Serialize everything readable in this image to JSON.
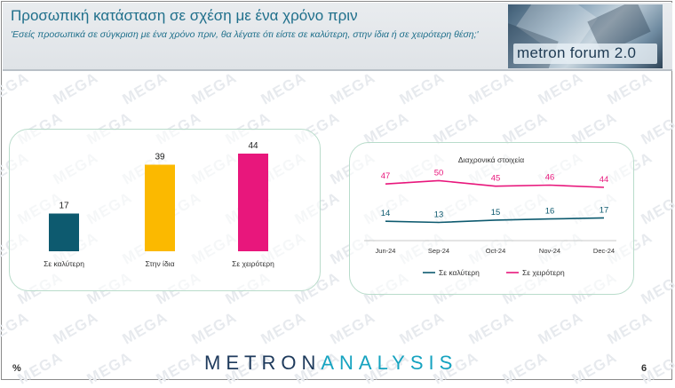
{
  "header": {
    "title": "Προσωπική κατάσταση σε σχέση με ένα χρόνο πριν",
    "subtitle": "'Εσείς προσωπικά σε σύγκριση με ένα χρόνο πριν, θα λέγατε ότι είστε σε καλύτερη, στην ίδια ή σε χειρότερη θέση;'"
  },
  "logo": {
    "text": "metron forum 2.0"
  },
  "watermark": {
    "text": "MEGA"
  },
  "footer": {
    "brand_part1": "METRON",
    "brand_part2": "ANALYSIS",
    "corner_left": "%",
    "page_number": "6"
  },
  "colors": {
    "better": "#0d5a6f",
    "same": "#fbb900",
    "worse": "#e8177c",
    "title": "#1f6f8b"
  },
  "chart_data": [
    {
      "type": "bar",
      "categories": [
        "Σε καλύτερη",
        "Στην ίδια",
        "Σε χειρότερη"
      ],
      "values": [
        17,
        39,
        44
      ],
      "colors": [
        "#0d5a6f",
        "#fbb900",
        "#e8177c"
      ],
      "ylim": [
        0,
        50
      ]
    },
    {
      "type": "line",
      "title": "Διαχρονικά στοιχεία",
      "categories": [
        "Jun-24",
        "Sep-24",
        "Oct-24",
        "Nov-24",
        "Dec-24"
      ],
      "series": [
        {
          "name": "Σε καλύτερη",
          "values": [
            14,
            13,
            15,
            16,
            17
          ],
          "color": "#0d5a6f"
        },
        {
          "name": "Σε χειρότερη",
          "values": [
            47,
            50,
            45,
            46,
            44
          ],
          "color": "#e8177c"
        }
      ],
      "legend": "bottom"
    }
  ]
}
